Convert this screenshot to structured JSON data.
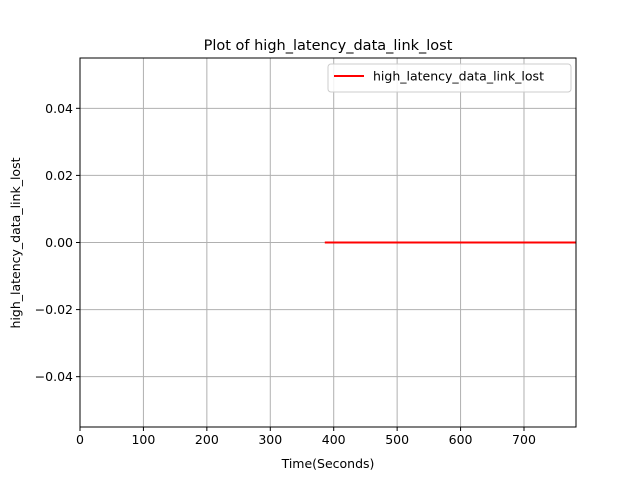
{
  "chart_data": {
    "type": "line",
    "title": "Plot of high_latency_data_link_lost",
    "xlabel": "Time(Seconds)",
    "ylabel": "high_latency_data_link_lost",
    "xlim": [
      0,
      782
    ],
    "ylim": [
      -0.055,
      0.055
    ],
    "xticks": [
      0,
      100,
      200,
      300,
      400,
      500,
      600,
      700
    ],
    "xtick_labels": [
      "0",
      "100",
      "200",
      "300",
      "400",
      "500",
      "600",
      "700"
    ],
    "yticks": [
      -0.04,
      -0.02,
      0.0,
      0.02,
      0.04
    ],
    "ytick_labels": [
      "−0.04",
      "−0.02",
      "0.00",
      "0.02",
      "0.04"
    ],
    "grid": true,
    "legend_position": "top-right",
    "series": [
      {
        "name": "high_latency_data_link_lost",
        "color": "#ff0000",
        "x": [
          386,
          782
        ],
        "y": [
          0,
          0
        ]
      }
    ]
  }
}
